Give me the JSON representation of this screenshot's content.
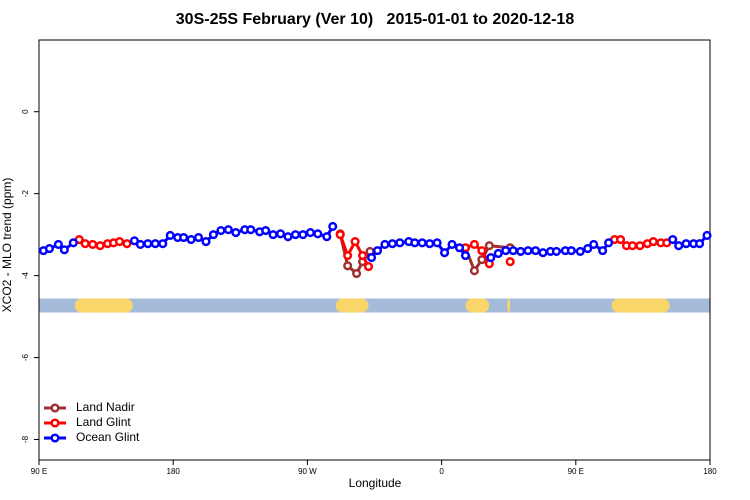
{
  "chart_data": {
    "type": "line",
    "title": "30S-25S February (Ver 10)   2015-01-01 to 2020-12-18",
    "xlabel": "Longitude",
    "ylabel": "XCO2 - MLO trend (ppm)",
    "xlim": [
      90,
      540
    ],
    "ylim": [
      -8.5,
      1.75
    ],
    "xticks": [
      {
        "value": 90,
        "label": "90 E"
      },
      {
        "value": 180,
        "label": "180"
      },
      {
        "value": 270,
        "label": "90 W"
      },
      {
        "value": 360,
        "label": "0"
      },
      {
        "value": 450,
        "label": "90 E"
      },
      {
        "value": 540,
        "label": "180"
      }
    ],
    "yticks": [
      0,
      -2,
      -4,
      -6,
      -8
    ],
    "legend": "bottom-left",
    "mask_y": -4.73,
    "ocean_color": "#a4bbd9",
    "land_color": "#fad56a",
    "land_ranges": [
      [
        114,
        153
      ],
      [
        289,
        311
      ],
      [
        376,
        392
      ],
      [
        404,
        406
      ],
      [
        474,
        513
      ]
    ],
    "series": [
      {
        "name": "Land Nadir",
        "color": "#a03030",
        "x": [
          292,
          297,
          303,
          307,
          312,
          null,
          376,
          382,
          387,
          392,
          406
        ],
        "values": [
          -2.98,
          -3.76,
          -3.95,
          -3.66,
          -3.41,
          null,
          -3.32,
          -3.88,
          -3.61,
          -3.27,
          -3.32
        ]
      },
      {
        "name": "Land Glint",
        "color": "#ff0000",
        "x": [
          117,
          121,
          126,
          131,
          136,
          140,
          144,
          149,
          null,
          292,
          297,
          302,
          307,
          311,
          null,
          376,
          382,
          387,
          392,
          null,
          406,
          null,
          476,
          480,
          484,
          488,
          493,
          498,
          502,
          507,
          511
        ],
        "values": [
          -3.12,
          -3.22,
          -3.24,
          -3.27,
          -3.22,
          -3.2,
          -3.17,
          -3.22,
          null,
          -3.0,
          -3.51,
          -3.17,
          -3.51,
          -3.78,
          null,
          -3.32,
          -3.24,
          -3.39,
          -3.71,
          null,
          -3.66,
          null,
          -3.12,
          -3.12,
          -3.27,
          -3.27,
          -3.27,
          -3.22,
          -3.17,
          -3.2,
          -3.2
        ]
      },
      {
        "name": "Ocean Glint",
        "color": "#0000ff",
        "x": [
          93,
          97,
          103,
          107,
          113,
          null,
          154,
          158,
          163,
          168,
          173,
          178,
          183,
          187,
          192,
          197,
          202,
          207,
          212,
          217,
          222,
          228,
          232,
          238,
          242,
          247,
          252,
          257,
          262,
          267,
          272,
          277,
          283,
          287,
          null,
          313,
          317,
          322,
          327,
          332,
          338,
          342,
          347,
          352,
          357,
          362,
          367,
          372,
          376,
          null,
          393,
          398,
          403,
          408,
          413,
          418,
          423,
          428,
          433,
          437,
          443,
          447,
          453,
          458,
          462,
          468,
          472,
          null,
          515,
          519,
          524,
          529,
          533,
          538
        ],
        "values": [
          -3.39,
          -3.34,
          -3.24,
          -3.37,
          -3.2,
          null,
          -3.15,
          -3.24,
          -3.22,
          -3.22,
          -3.22,
          -3.02,
          -3.07,
          -3.07,
          -3.12,
          -3.07,
          -3.17,
          -3.0,
          -2.9,
          -2.88,
          -2.95,
          -2.88,
          -2.88,
          -2.93,
          -2.9,
          -3.0,
          -2.98,
          -3.05,
          -3.0,
          -3.0,
          -2.95,
          -2.98,
          -3.05,
          -2.8,
          null,
          -3.56,
          -3.39,
          -3.24,
          -3.22,
          -3.2,
          -3.17,
          -3.2,
          -3.2,
          -3.22,
          -3.2,
          -3.44,
          -3.24,
          -3.32,
          -3.51,
          null,
          -3.56,
          -3.46,
          -3.39,
          -3.39,
          -3.41,
          -3.39,
          -3.39,
          -3.44,
          -3.41,
          -3.41,
          -3.39,
          -3.39,
          -3.41,
          -3.34,
          -3.24,
          -3.39,
          -3.2,
          null,
          -3.12,
          -3.27,
          -3.22,
          -3.22,
          -3.22,
          -3.02
        ]
      }
    ]
  }
}
